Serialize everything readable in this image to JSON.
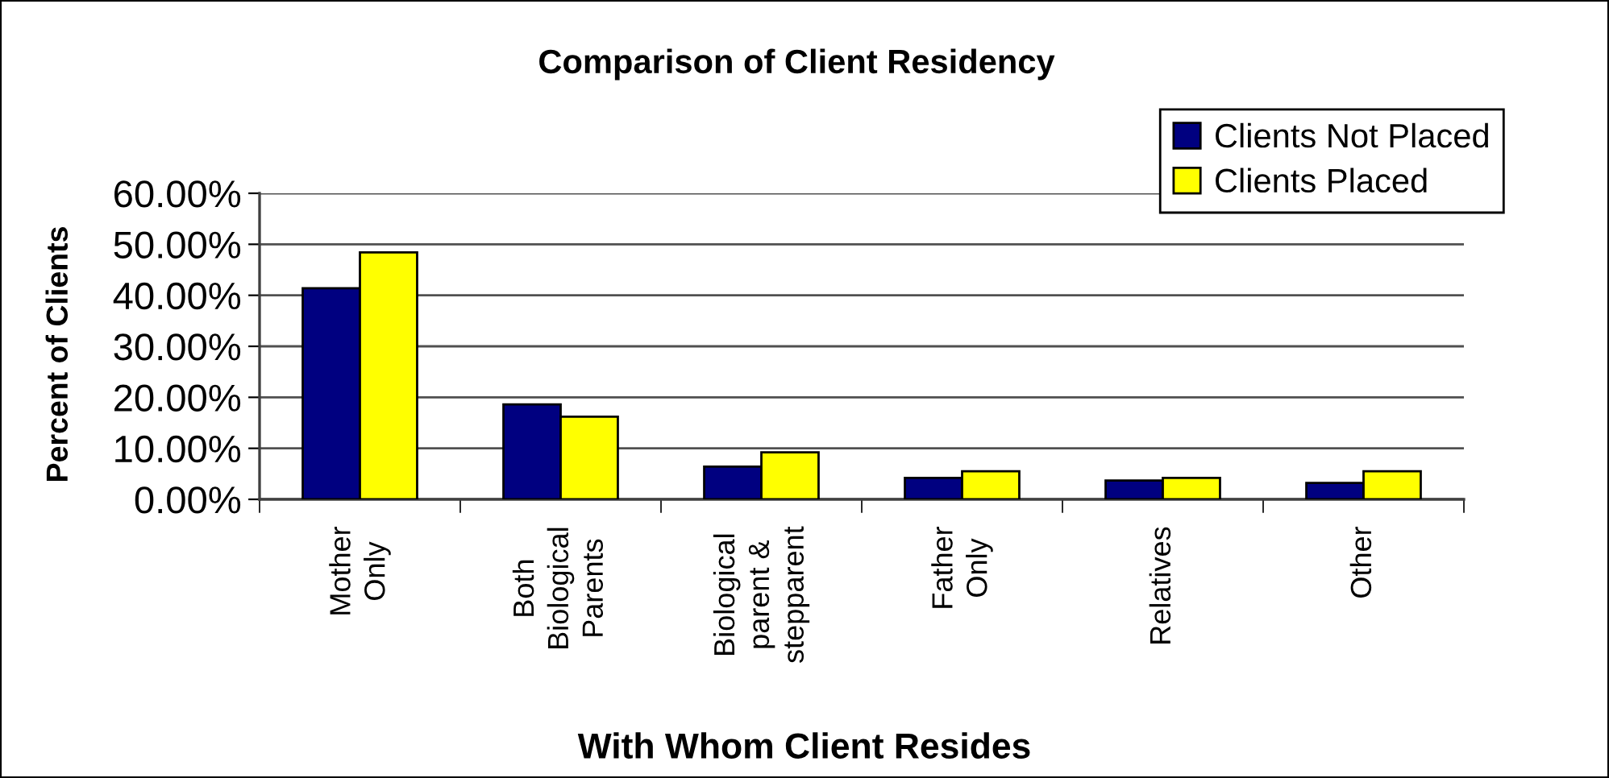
{
  "chart_data": {
    "type": "bar",
    "title": "Comparison of Client Residency",
    "xlabel": "With Whom Client Resides",
    "ylabel": "Percent of Clients",
    "categories": [
      "Mother\nOnly",
      "Both\nBiological\nParents",
      "Biological\nparent &\nstepparent",
      "Father\nOnly",
      "Relatives",
      "Other"
    ],
    "series": [
      {
        "name": "Clients Not Placed",
        "color": "#000080",
        "values": [
          41.4,
          18.6,
          6.4,
          4.2,
          3.7,
          3.2
        ]
      },
      {
        "name": "Clients Placed",
        "color": "#ffff00",
        "values": [
          48.4,
          16.2,
          9.2,
          5.5,
          4.2,
          5.5
        ]
      }
    ],
    "ylim": [
      0,
      60
    ],
    "yticks": [
      {
        "value": 0,
        "label": "0.00%"
      },
      {
        "value": 10,
        "label": "10.00%"
      },
      {
        "value": 20,
        "label": "20.00%"
      },
      {
        "value": 30,
        "label": "30.00%"
      },
      {
        "value": 40,
        "label": "40.00%"
      },
      {
        "value": 50,
        "label": "50.00%"
      },
      {
        "value": 60,
        "label": "60.00%"
      }
    ],
    "grid": "y",
    "legend": "top right"
  }
}
